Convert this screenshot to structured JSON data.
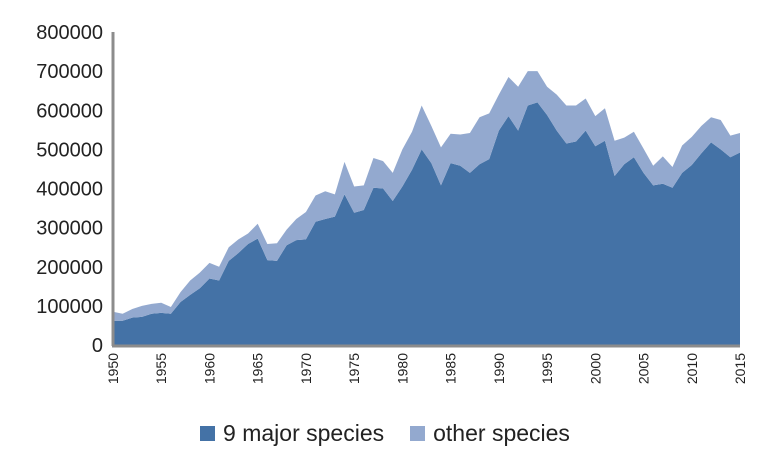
{
  "chart_data": {
    "type": "area",
    "stacked": true,
    "title": "",
    "xlabel": "",
    "ylabel": "",
    "ylim": [
      0,
      800000
    ],
    "xlim": [
      1950,
      2015
    ],
    "grid": false,
    "legend_position": "bottom",
    "yticks": [
      "0",
      "100000",
      "200000",
      "300000",
      "400000",
      "500000",
      "600000",
      "700000",
      "800000"
    ],
    "xticks": [
      "1950",
      "1955",
      "1960",
      "1965",
      "1970",
      "1975",
      "1980",
      "1985",
      "1990",
      "1995",
      "2000",
      "2005",
      "2010",
      "2015"
    ],
    "x": [
      1950,
      1951,
      1952,
      1953,
      1954,
      1955,
      1956,
      1957,
      1958,
      1959,
      1960,
      1961,
      1962,
      1963,
      1964,
      1965,
      1966,
      1967,
      1968,
      1969,
      1970,
      1971,
      1972,
      1973,
      1974,
      1975,
      1976,
      1977,
      1978,
      1979,
      1980,
      1981,
      1982,
      1983,
      1984,
      1985,
      1986,
      1987,
      1988,
      1989,
      1990,
      1991,
      1992,
      1993,
      1994,
      1995,
      1996,
      1997,
      1998,
      1999,
      2000,
      2001,
      2002,
      2003,
      2004,
      2005,
      2006,
      2007,
      2008,
      2009,
      2010,
      2011,
      2012,
      2013,
      2014,
      2015
    ],
    "series": [
      {
        "name": "9 major species",
        "color": "#4472a6",
        "values": [
          62000,
          62000,
          70000,
          72000,
          80000,
          82000,
          80000,
          110000,
          128000,
          145000,
          170000,
          165000,
          215000,
          235000,
          258000,
          272000,
          217000,
          215000,
          255000,
          268000,
          270000,
          315000,
          322000,
          328000,
          385000,
          338000,
          345000,
          402000,
          400000,
          368000,
          405000,
          448000,
          500000,
          465000,
          408000,
          465000,
          458000,
          440000,
          462000,
          475000,
          548000,
          585000,
          548000,
          612000,
          620000,
          588000,
          548000,
          515000,
          520000,
          548000,
          508000,
          522000,
          432000,
          462000,
          480000,
          440000,
          408000,
          412000,
          402000,
          440000,
          460000,
          490000,
          518000,
          500000,
          480000,
          492000
        ]
      },
      {
        "name": "other species",
        "color": "#93a9cf",
        "values": [
          23000,
          18000,
          22000,
          28000,
          25000,
          26000,
          17000,
          25000,
          37000,
          40000,
          40000,
          35000,
          35000,
          35000,
          27000,
          38000,
          41000,
          45000,
          40000,
          54000,
          70000,
          67000,
          71000,
          57000,
          83000,
          67000,
          63000,
          76000,
          70000,
          72000,
          95000,
          97000,
          112000,
          95000,
          97000,
          75000,
          80000,
          102000,
          120000,
          117000,
          92000,
          100000,
          112000,
          88000,
          80000,
          72000,
          92000,
          97000,
          92000,
          82000,
          77000,
          83000,
          90000,
          68000,
          65000,
          62000,
          50000,
          70000,
          53000,
          70000,
          72000,
          70000,
          64000,
          75000,
          55000,
          50000
        ]
      }
    ]
  }
}
